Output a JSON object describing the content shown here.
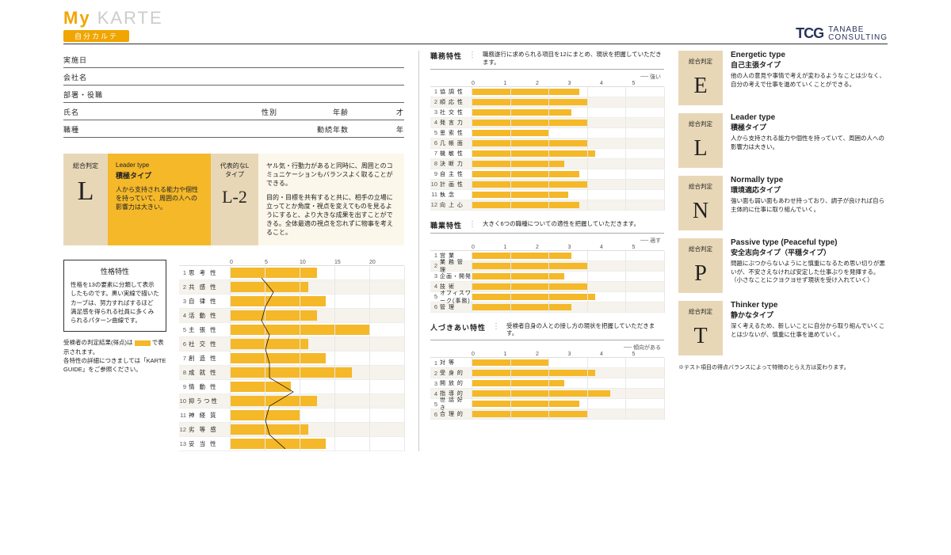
{
  "header": {
    "title_my": "My",
    "title_karte": "KARTE",
    "subtitle": "自分カルテ",
    "logo_tcg": "TCG",
    "logo_line1": "TANABE",
    "logo_line2": "CONSULTING"
  },
  "form_labels": {
    "date": "実施日",
    "company": "会社名",
    "dept": "部署・役職",
    "name": "氏名",
    "gender": "性別",
    "age": "年齢",
    "age_unit": "才",
    "job": "職種",
    "tenure": "勤続年数",
    "tenure_unit": "年"
  },
  "judgement": {
    "label1": "総合判定",
    "big1": "L",
    "small_title": "Leader type",
    "sub": "積極タイプ",
    "desc1": "人から支持される能力や個性を持っていて、周囲の人への影響力は大きい。",
    "label2": "代表的なLタイプ",
    "big2": "L-2",
    "desc2_a": "ヤル気・行動力があると同時に、周囲とのコミュニケーションもバランスよく取ることができる。",
    "desc2_b": "目的・目標を共有すると共に、相手の立場に立ってとか角度・視点を変えてものを見るようにすると、より大きな成果を出すことができる。全体最適の視点を忘れずに物事を考えること。"
  },
  "side_note": {
    "box_title": "性格特性",
    "box_text": "性格を13の要素に分類して表示したものです。黒い実線で描いたカーブは、努力すればするほど満足感を得られる社員に多くみられるパターン曲線です。",
    "legend_a": "受検者の判定結果(得点)は",
    "legend_b": "で表示されます。",
    "legend_c": "各特性の詳細につきましては「KARTE GUIDE」をご参照ください。"
  },
  "chart_big": {
    "max": 20,
    "ticks": [
      "0",
      "5",
      "10",
      "15",
      "20"
    ],
    "line_points": [
      8,
      11,
      9,
      8,
      10,
      9,
      10,
      10,
      16,
      10,
      9,
      10,
      14
    ],
    "items": [
      {
        "n": "1",
        "name": "思 考 性",
        "v": 10
      },
      {
        "n": "2",
        "name": "共 感 性",
        "v": 9
      },
      {
        "n": "3",
        "name": "自 律 性",
        "v": 11
      },
      {
        "n": "4",
        "name": "活 動 性",
        "v": 10
      },
      {
        "n": "5",
        "name": "主 張 性",
        "v": 16
      },
      {
        "n": "6",
        "name": "社 交 性",
        "v": 9
      },
      {
        "n": "7",
        "name": "創 造 性",
        "v": 11
      },
      {
        "n": "8",
        "name": "成 就 性",
        "v": 14
      },
      {
        "n": "9",
        "name": "情 動 性",
        "v": 7
      },
      {
        "n": "10",
        "name": "抑うつ性",
        "v": 10
      },
      {
        "n": "11",
        "name": "神 経 質",
        "v": 8
      },
      {
        "n": "12",
        "name": "劣 等 感",
        "v": 9
      },
      {
        "n": "13",
        "name": "妥 当 性",
        "v": 11
      }
    ]
  },
  "mid_charts": [
    {
      "title": "職務特性",
      "desc": "職務遂行に求められる項目を12にまとめ、現状を把握していただきます。",
      "arrow": "強い",
      "max": 5,
      "ticks": [
        "0",
        "1",
        "2",
        "3",
        "4",
        "5"
      ],
      "items": [
        {
          "n": "1",
          "name": "協 調 性",
          "v": 2.8
        },
        {
          "n": "2",
          "name": "順 応 性",
          "v": 3.0
        },
        {
          "n": "3",
          "name": "社 交 性",
          "v": 2.6
        },
        {
          "n": "4",
          "name": "発 言 力",
          "v": 3.0
        },
        {
          "n": "5",
          "name": "思 索 性",
          "v": 2.0
        },
        {
          "n": "6",
          "name": "几 帳 面",
          "v": 3.0
        },
        {
          "n": "7",
          "name": "機 敏 性",
          "v": 3.2
        },
        {
          "n": "8",
          "name": "決 断 力",
          "v": 2.4
        },
        {
          "n": "9",
          "name": "自 主 性",
          "v": 2.8
        },
        {
          "n": "10",
          "name": "計 画 性",
          "v": 3.0
        },
        {
          "n": "11",
          "name": "執 念",
          "v": 2.5
        },
        {
          "n": "12",
          "name": "向 上 心",
          "v": 2.8
        }
      ]
    },
    {
      "title": "職業特性",
      "desc": "大きく6つの職種についての適性を把握していただきます。",
      "arrow": "適す",
      "max": 5,
      "ticks": [
        "0",
        "1",
        "2",
        "3",
        "4",
        "5"
      ],
      "items": [
        {
          "n": "1",
          "name": "営 業",
          "v": 2.6
        },
        {
          "n": "2",
          "name": "業 務 管 理",
          "v": 3.0
        },
        {
          "n": "3",
          "name": "企画・開発",
          "v": 2.4
        },
        {
          "n": "4",
          "name": "技 術",
          "v": 3.0
        },
        {
          "n": "5",
          "name": "オフィスワーク(事務)",
          "v": 3.2
        },
        {
          "n": "6",
          "name": "管 理",
          "v": 2.6
        }
      ]
    },
    {
      "title": "人づきあい特性",
      "desc": "受検者自身の人との接し方の現状を把握していただきます。",
      "arrow": "傾向がある",
      "max": 5,
      "ticks": [
        "0",
        "1",
        "2",
        "3",
        "4",
        "5"
      ],
      "items": [
        {
          "n": "1",
          "name": "対 等",
          "v": 2.0
        },
        {
          "n": "2",
          "name": "受 身 的",
          "v": 3.2
        },
        {
          "n": "3",
          "name": "開 放 的",
          "v": 2.4
        },
        {
          "n": "4",
          "name": "指 導 的",
          "v": 3.6
        },
        {
          "n": "5",
          "name": "世 話 好 き",
          "v": 2.8
        },
        {
          "n": "6",
          "name": "合 理 的",
          "v": 3.0
        }
      ]
    }
  ],
  "types": [
    {
      "code": "E",
      "label": "総合判定",
      "en": "Energetic type",
      "jp": "自己主張タイプ",
      "tx": "他の人の意見や事情で考えが変わるようなことは少なく、自分の考えで仕事を進めていくことができる。"
    },
    {
      "code": "L",
      "label": "総合判定",
      "en": "Leader type",
      "jp": "積極タイプ",
      "tx": "人から支持される能力や個性を持っていて、周囲の人への影響力は大きい。"
    },
    {
      "code": "N",
      "label": "総合判定",
      "en": "Normally type",
      "jp": "環境適応タイプ",
      "tx": "強い面も弱い面もあわせ持っており、調子が良ければ自ら主体的に仕事に取り組んでいく。"
    },
    {
      "code": "P",
      "label": "総合判定",
      "en": "Passive type (Peaceful type)",
      "jp": "安全志向タイプ（平穏タイプ）",
      "tx": "問題にぶつからないようにと慎重になるため思い切りが悪いが、不安さえなければ安定した仕事ぶりを発揮する。（小さなことにクヨクヨせず現状を受け入れていく）"
    },
    {
      "code": "T",
      "label": "総合判定",
      "en": "Thinker type",
      "jp": "静かなタイプ",
      "tx": "深く考えるため、新しいことに自分から取り組んでいくことは少ないが、慎重に仕事を進めていく。"
    }
  ],
  "footnote": "※テスト項目の得点バランスによって特徴のとらえ方は変わります。",
  "colors": {
    "bar": "#f4b829",
    "tan": "#e8d7b7",
    "cream": "#fcf7eb"
  }
}
